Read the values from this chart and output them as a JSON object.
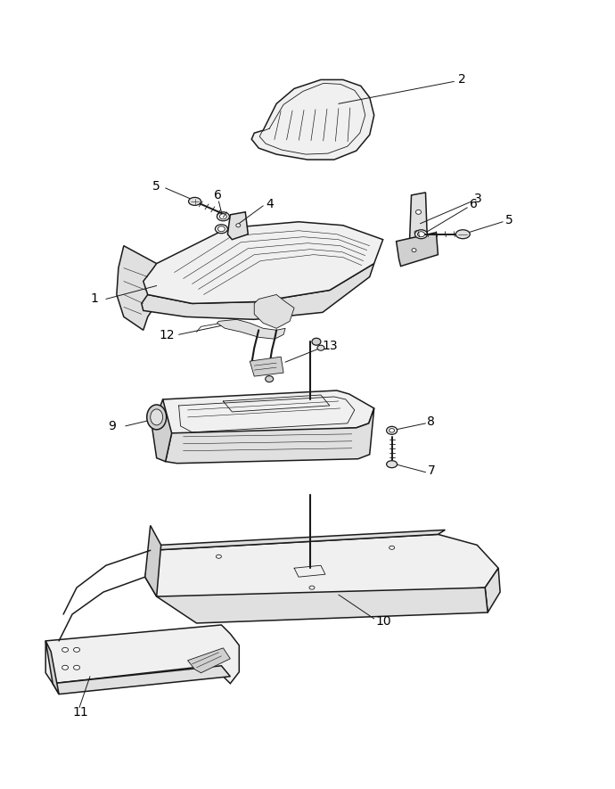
{
  "background_color": "#ffffff",
  "line_color": "#1a1a1a",
  "label_color": "#000000",
  "fig_width": 6.9,
  "fig_height": 8.85,
  "dpi": 100,
  "font_size": 10,
  "lw_main": 1.1,
  "lw_thin": 0.6,
  "lw_detail": 0.4
}
